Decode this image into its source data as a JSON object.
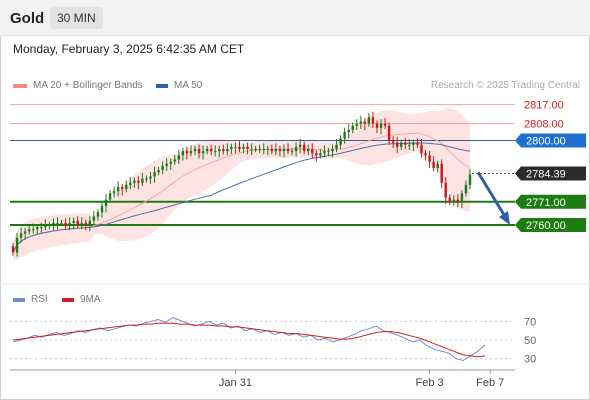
{
  "header": {
    "symbol": "Gold",
    "interval": "30 MIN"
  },
  "timestamp": "Monday, February 3, 2025 6:42:35 AM CET",
  "legend_main": [
    {
      "label": "MA 20 + Bollinger Bands",
      "color": "#f08a84"
    },
    {
      "label": "MA 50",
      "color": "#2f5f9e"
    }
  ],
  "credit": "Research © 2025 Trading Central",
  "legend_rsi": [
    {
      "label": "RSI",
      "color": "#6a8fd6"
    },
    {
      "label": "9MA",
      "color": "#d42020"
    }
  ],
  "colors": {
    "resistance": "#f3a3a0",
    "pivot": "#2f5f9e",
    "support": "#1e7b12",
    "band_fill": "#fde1df",
    "ma20": "#f5a8a3",
    "ma50": "#4f6fa8",
    "candle_up": "#1b7a1b",
    "candle_down": "#c81a1a",
    "arrow": "#2f5f9e",
    "current": "#2b2b2b"
  },
  "chart_data": [
    {
      "type": "candlestick",
      "title": "Gold 30 MIN",
      "price_range": [
        2733,
        2823
      ],
      "levels": [
        {
          "label": "2817.00",
          "value": 2817.0,
          "kind": "resistance"
        },
        {
          "label": "2808.00",
          "value": 2808.0,
          "kind": "resistance"
        },
        {
          "label": "2800.00",
          "value": 2800.0,
          "kind": "pivot"
        },
        {
          "label": "2771.00",
          "value": 2771.0,
          "kind": "support"
        },
        {
          "label": "2760.00",
          "value": 2760.0,
          "kind": "support"
        }
      ],
      "current_price": {
        "label": "2784.39",
        "value": 2784.39
      },
      "forecast_arrow": {
        "from": 2785.0,
        "to": 2760.0
      },
      "x_ticks": [
        "Jan 31",
        "Feb 3",
        "Feb 7"
      ],
      "x_tick_index": [
        55,
        103,
        118
      ],
      "closes": [
        2747,
        2754,
        2756,
        2757,
        2758,
        2758,
        2759,
        2759,
        2760,
        2760,
        2761,
        2761,
        2761,
        2760,
        2761,
        2762,
        2760,
        2761,
        2760,
        2762,
        2764,
        2766,
        2769,
        2772,
        2775,
        2776,
        2778,
        2777,
        2779,
        2780,
        2781,
        2780,
        2782,
        2782,
        2783,
        2785,
        2786,
        2788,
        2789,
        2790,
        2791,
        2793,
        2795,
        2794,
        2795,
        2796,
        2794,
        2795,
        2796,
        2795,
        2795,
        2796,
        2795,
        2796,
        2797,
        2797,
        2796,
        2797,
        2796,
        2796,
        2796,
        2796,
        2796,
        2796,
        2795,
        2796,
        2795,
        2796,
        2795,
        2795,
        2797,
        2798,
        2795,
        2796,
        2794,
        2793,
        2794,
        2795,
        2795,
        2796,
        2798,
        2801,
        2804,
        2805,
        2807,
        2808,
        2809,
        2808,
        2811,
        2808,
        2806,
        2808,
        2807,
        2800,
        2799,
        2797,
        2799,
        2798,
        2798,
        2799,
        2798,
        2794,
        2793,
        2790,
        2787,
        2789,
        2780,
        2773,
        2771,
        2772,
        2771,
        2775,
        2779,
        2784
      ]
    },
    {
      "type": "line",
      "title": "RSI",
      "y_ticks": [
        70,
        50,
        30
      ],
      "ylim": [
        20,
        80
      ],
      "series": [
        {
          "name": "RSI",
          "values": [
            48,
            50,
            52,
            55,
            53,
            56,
            58,
            55,
            57,
            60,
            58,
            61,
            63,
            60,
            62,
            64,
            66,
            65,
            68,
            70,
            72,
            69,
            74,
            71,
            68,
            65,
            67,
            70,
            66,
            68,
            63,
            65,
            60,
            62,
            58,
            60,
            56,
            58,
            55,
            57,
            53,
            55,
            50,
            52,
            48,
            50,
            53,
            56,
            60,
            62,
            65,
            60,
            58,
            55,
            52,
            48,
            50,
            44,
            40,
            38,
            36,
            30,
            28,
            33,
            38,
            45
          ]
        },
        {
          "name": "9MA",
          "values": [
            50,
            51,
            52,
            53,
            54,
            55,
            56,
            57,
            58,
            59,
            60,
            61,
            62,
            63,
            64,
            65,
            66,
            66,
            67,
            67,
            68,
            68,
            68,
            67,
            67,
            66,
            66,
            66,
            65,
            65,
            64,
            64,
            63,
            62,
            61,
            60,
            59,
            58,
            57,
            57,
            56,
            55,
            54,
            53,
            52,
            51,
            51,
            52,
            54,
            56,
            58,
            59,
            59,
            58,
            56,
            54,
            52,
            49,
            46,
            43,
            40,
            37,
            34,
            33,
            32,
            33
          ]
        }
      ]
    }
  ]
}
